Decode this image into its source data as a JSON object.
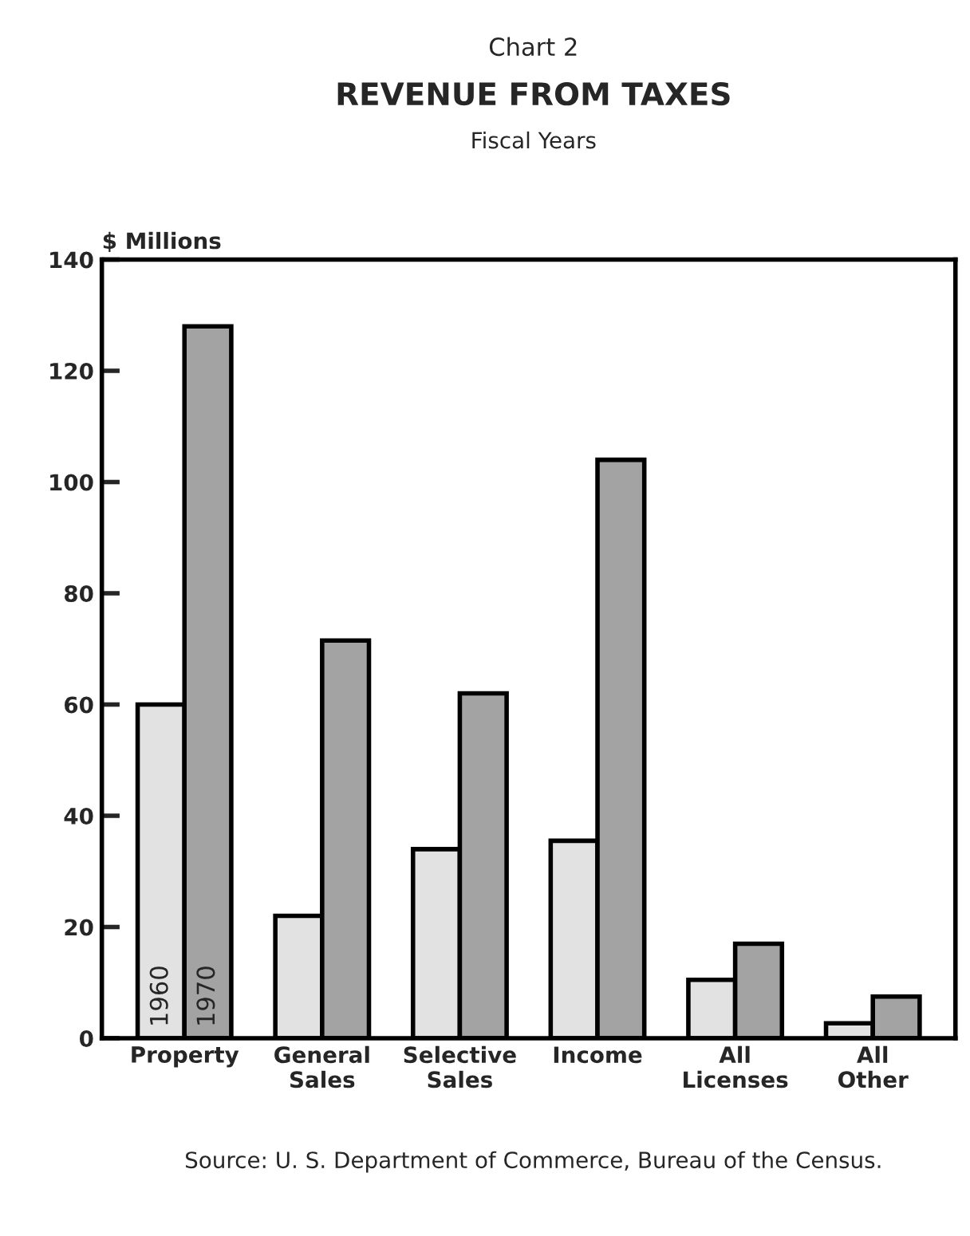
{
  "chart_data": {
    "type": "bar",
    "title": "REVENUE FROM TAXES",
    "subtitle": "Fiscal Years",
    "ylabel": "$ Millions",
    "categories": [
      "Property",
      "General\nSales",
      "Selective\nSales",
      "Income",
      "All\nLicenses",
      "All\nOther"
    ],
    "series": [
      {
        "name": "1960",
        "color": "#e2e2e2",
        "values": [
          60,
          22,
          34,
          35.5,
          10.5,
          2.7
        ]
      },
      {
        "name": "1970",
        "color": "#a3a3a3",
        "values": [
          128,
          71.5,
          62,
          104,
          17,
          7.5
        ]
      }
    ],
    "ylim": [
      0,
      140
    ],
    "yticks": [
      0,
      20,
      40,
      60,
      80,
      100,
      120,
      140
    ],
    "grid": false,
    "legend": false,
    "annotations": [
      "Chart 2",
      "Source: U. S. Department of Commerce, Bureau of the Census."
    ]
  }
}
